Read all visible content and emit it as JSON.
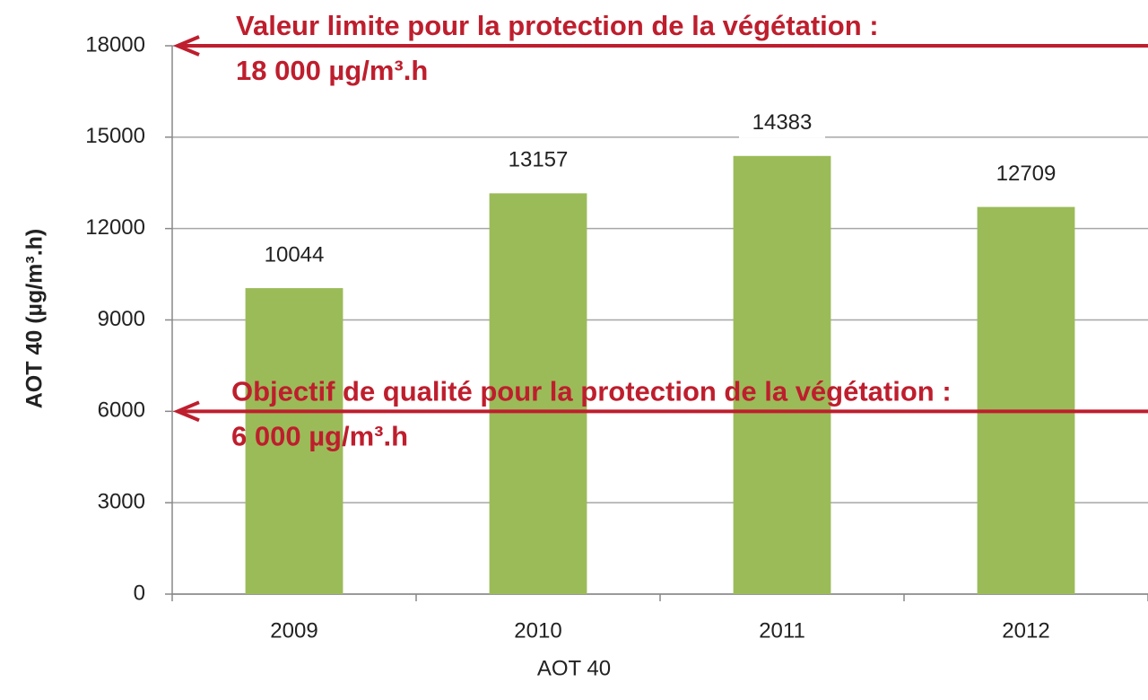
{
  "chart_data": {
    "type": "bar",
    "categories": [
      "2009",
      "2010",
      "2011",
      "2012"
    ],
    "values": [
      10044,
      13157,
      14383,
      12709
    ],
    "color": "#9bbb59",
    "ylim": [
      0,
      18000
    ],
    "yticks": [
      0,
      3000,
      6000,
      9000,
      12000,
      15000,
      18000
    ],
    "grid": true,
    "ylabel": "AOT 40  (µg/m³.h)",
    "xlabel": "AOT 40",
    "reference_lines": [
      {
        "value": 18000,
        "color": "#be1e2d",
        "label": [
          "Valeur limite pour la protection de la végétation :",
          "18 000 µg/m³.h"
        ]
      },
      {
        "value": 6000,
        "color": "#be1e2d",
        "label": [
          "Objectif de qualité pour la protection de la végétation :",
          "6 000 µg/m³.h"
        ]
      }
    ]
  }
}
